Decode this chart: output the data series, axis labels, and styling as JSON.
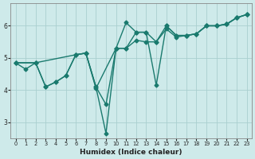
{
  "xlabel": "Humidex (Indice chaleur)",
  "bg_color": "#ceeaea",
  "line_color": "#1a7a6e",
  "grid_color": "#aacfcf",
  "xlim": [
    -0.5,
    23.5
  ],
  "ylim": [
    2.5,
    6.7
  ],
  "yticks": [
    3,
    4,
    5,
    6
  ],
  "xticks": [
    0,
    1,
    2,
    3,
    4,
    5,
    6,
    7,
    8,
    9,
    10,
    11,
    12,
    13,
    14,
    15,
    16,
    17,
    18,
    19,
    20,
    21,
    22,
    23
  ],
  "lines": [
    {
      "x": [
        0,
        1,
        2,
        3,
        4,
        5,
        6,
        7,
        8,
        9,
        10,
        11,
        12,
        13,
        14,
        15,
        16,
        17,
        18,
        19,
        20,
        21,
        22,
        23
      ],
      "y": [
        4.85,
        4.65,
        4.85,
        4.1,
        4.25,
        4.45,
        5.1,
        5.15,
        4.1,
        2.65,
        5.3,
        6.1,
        5.8,
        5.8,
        5.5,
        6.0,
        5.7,
        5.7,
        5.75,
        6.0,
        6.0,
        6.05,
        6.25,
        6.35
      ]
    },
    {
      "x": [
        0,
        2,
        3,
        4,
        5,
        6,
        7,
        8,
        10,
        11,
        12,
        13,
        14,
        15,
        16,
        17,
        18,
        19,
        20,
        21,
        22,
        23
      ],
      "y": [
        4.85,
        4.85,
        4.1,
        4.25,
        4.45,
        5.1,
        5.15,
        4.05,
        5.3,
        5.3,
        5.55,
        5.5,
        5.5,
        5.9,
        5.65,
        5.7,
        5.75,
        6.0,
        6.0,
        6.05,
        6.25,
        6.35
      ]
    },
    {
      "x": [
        0,
        2,
        6,
        7,
        8,
        9,
        10,
        11,
        12,
        13,
        14,
        15,
        16,
        17,
        18,
        19,
        20,
        21,
        22,
        23
      ],
      "y": [
        4.85,
        4.85,
        5.1,
        5.15,
        4.1,
        3.55,
        5.3,
        5.3,
        5.8,
        5.8,
        4.15,
        6.0,
        5.7,
        5.7,
        5.75,
        6.0,
        6.0,
        6.05,
        6.25,
        6.35
      ]
    }
  ],
  "marker": "D",
  "markersize": 2.5,
  "linewidth": 1.0
}
